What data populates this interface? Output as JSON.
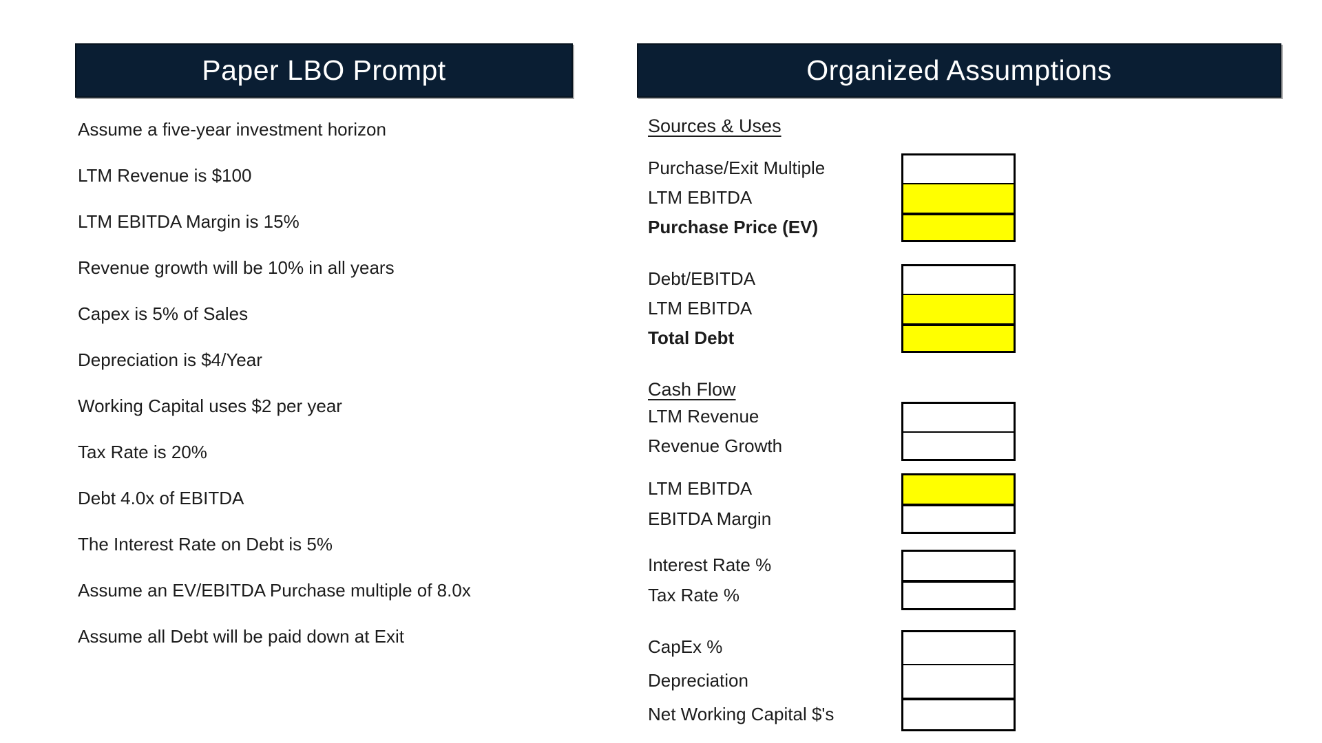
{
  "colors": {
    "header_bg": "#0a1e33",
    "header_text": "#ffffff",
    "highlight_yellow": "#ffff00",
    "cell_white": "#ffffff",
    "cell_border": "#000000",
    "body_text": "#1c1c1c"
  },
  "left_panel": {
    "title": "Paper LBO Prompt",
    "items": [
      "Assume a five-year investment horizon",
      "LTM Revenue is $100",
      "LTM EBITDA Margin is 15%",
      "Revenue growth will be 10% in all years",
      "Capex is 5% of Sales",
      "Depreciation is $4/Year",
      "Working Capital uses $2 per year",
      "Tax Rate is 20%",
      "Debt 4.0x of EBITDA",
      "The Interest Rate on Debt is 5%",
      "Assume an EV/EBITDA Purchase multiple of 8.0x",
      "Assume all Debt will be paid down at Exit"
    ]
  },
  "right_panel": {
    "title": "Organized Assumptions",
    "sections": [
      {
        "heading": "Sources & Uses",
        "groups": [
          {
            "rows": [
              {
                "label": "Purchase/Exit Multiple",
                "value": "",
                "fill": "white",
                "bold": false
              },
              {
                "label": "LTM EBITDA",
                "value": "",
                "fill": "yellow",
                "bold": false
              },
              {
                "label": "Purchase Price (EV)",
                "value": "",
                "fill": "yellow",
                "bold": true
              }
            ]
          },
          {
            "rows": [
              {
                "label": "Debt/EBITDA",
                "value": "",
                "fill": "white",
                "bold": false
              },
              {
                "label": "LTM EBITDA",
                "value": "",
                "fill": "yellow",
                "bold": false
              },
              {
                "label": "Total Debt",
                "value": "",
                "fill": "yellow",
                "bold": true
              }
            ]
          }
        ]
      },
      {
        "heading": "Cash Flow",
        "groups": [
          {
            "rows": [
              {
                "label": "LTM Revenue",
                "value": "",
                "fill": "white",
                "bold": false
              },
              {
                "label": "Revenue Growth",
                "value": "",
                "fill": "white",
                "bold": false
              }
            ]
          },
          {
            "rows": [
              {
                "label": "LTM EBITDA",
                "value": "",
                "fill": "yellow",
                "bold": false
              },
              {
                "label": "EBITDA Margin",
                "value": "",
                "fill": "white",
                "bold": false
              }
            ]
          },
          {
            "rows": [
              {
                "label": "Interest Rate %",
                "value": "",
                "fill": "white",
                "bold": false
              },
              {
                "label": "Tax Rate %",
                "value": "",
                "fill": "white",
                "bold": false
              }
            ]
          },
          {
            "rows": [
              {
                "label": "CapEx %",
                "value": "",
                "fill": "white",
                "bold": false
              },
              {
                "label": "Depreciation",
                "value": "",
                "fill": "white",
                "bold": false
              },
              {
                "label": "Net Working Capital $'s",
                "value": "",
                "fill": "white",
                "bold": false
              }
            ]
          }
        ]
      }
    ]
  }
}
